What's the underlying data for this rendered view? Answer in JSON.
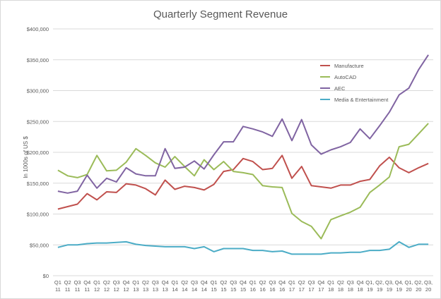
{
  "chart_data": {
    "type": "line",
    "title": "Quarterly Segment Revenue",
    "xlabel": "",
    "ylabel": "In 1000s of US $",
    "ylim": [
      0,
      400000
    ],
    "yticks": [
      0,
      50000,
      100000,
      150000,
      200000,
      250000,
      300000,
      350000,
      400000
    ],
    "ytick_labels": [
      "$0",
      "$50,000",
      "$100,000",
      "$150,000",
      "$200,000",
      "$250,000",
      "$300,000",
      "$350,000",
      "$400,000"
    ],
    "grid": true,
    "legend_position": "right",
    "categories": [
      [
        "Q1",
        "11"
      ],
      [
        "Q2",
        "11"
      ],
      [
        "Q3",
        "11"
      ],
      [
        "Q4",
        "11"
      ],
      [
        "Q1",
        "12"
      ],
      [
        "Q2",
        "12"
      ],
      [
        "Q3",
        "12"
      ],
      [
        "Q4",
        "12"
      ],
      [
        "Q1",
        "13"
      ],
      [
        "Q2",
        "13"
      ],
      [
        "Q3",
        "13"
      ],
      [
        "Q4",
        "13"
      ],
      [
        "Q1",
        "14"
      ],
      [
        "Q2",
        "14"
      ],
      [
        "Q3",
        "14"
      ],
      [
        "Q4",
        "14"
      ],
      [
        "Q1",
        "15"
      ],
      [
        "Q2",
        "15"
      ],
      [
        "Q3",
        "15"
      ],
      [
        "Q4",
        "15"
      ],
      [
        "Q1",
        "16"
      ],
      [
        "Q2",
        "16"
      ],
      [
        "Q3",
        "16"
      ],
      [
        "Q4",
        "16"
      ],
      [
        "Q1",
        "17"
      ],
      [
        "Q2",
        "17"
      ],
      [
        "Q3",
        "17"
      ],
      [
        "Q4",
        "17"
      ],
      [
        "Q1",
        "18"
      ],
      [
        "Q2",
        "18"
      ],
      [
        "Q3",
        "18"
      ],
      [
        "Q4",
        "18"
      ],
      [
        "Q1,",
        "19"
      ],
      [
        "Q2,",
        "19"
      ],
      [
        "Q3,",
        "19"
      ],
      [
        "Q4,",
        "19"
      ],
      [
        "Q1,",
        "20"
      ],
      [
        "Q2,",
        "20"
      ],
      [
        "Q3,",
        "20"
      ]
    ],
    "series": [
      {
        "name": "Manufacture",
        "color": "#C0504D",
        "values": [
          108000,
          112000,
          116000,
          133000,
          123000,
          136000,
          135000,
          149000,
          147000,
          141000,
          131000,
          155000,
          140000,
          145000,
          143000,
          139000,
          148000,
          169000,
          172000,
          190000,
          185000,
          172000,
          174000,
          195000,
          158000,
          177000,
          146000,
          144000,
          142000,
          147000,
          147000,
          153000,
          156000,
          178000,
          192000,
          175000,
          167000,
          175000,
          182000
        ]
      },
      {
        "name": "AutoCAD",
        "color": "#9BBB59",
        "values": [
          171000,
          162000,
          159000,
          164000,
          195000,
          170000,
          171000,
          184000,
          206000,
          195000,
          183000,
          176000,
          193000,
          177000,
          162000,
          188000,
          172000,
          185000,
          169000,
          167000,
          164000,
          146000,
          144000,
          143000,
          101000,
          88000,
          80000,
          60000,
          91000,
          97000,
          103000,
          111000,
          135000,
          147000,
          160000,
          209000,
          213000,
          230000,
          247000
        ]
      },
      {
        "name": "AEC",
        "color": "#8064A2",
        "values": [
          137000,
          134000,
          137000,
          163000,
          142000,
          158000,
          152000,
          175000,
          165000,
          162000,
          162000,
          206000,
          174000,
          176000,
          186000,
          173000,
          196000,
          217000,
          217000,
          242000,
          238000,
          233000,
          226000,
          254000,
          219000,
          253000,
          212000,
          197000,
          204000,
          209000,
          216000,
          238000,
          222000,
          243000,
          265000,
          293000,
          304000,
          334000,
          358000
        ]
      },
      {
        "name": "Media & Entertainment",
        "color": "#4BACC6",
        "values": [
          46000,
          50000,
          50000,
          52000,
          53000,
          53000,
          54000,
          55000,
          51000,
          49000,
          48000,
          47000,
          47000,
          47000,
          44000,
          47000,
          39000,
          44000,
          44000,
          44000,
          41000,
          41000,
          39000,
          40000,
          35000,
          35000,
          35000,
          35000,
          37000,
          37000,
          38000,
          38000,
          41000,
          41000,
          43000,
          55000,
          46000,
          51000,
          51000
        ]
      }
    ]
  }
}
